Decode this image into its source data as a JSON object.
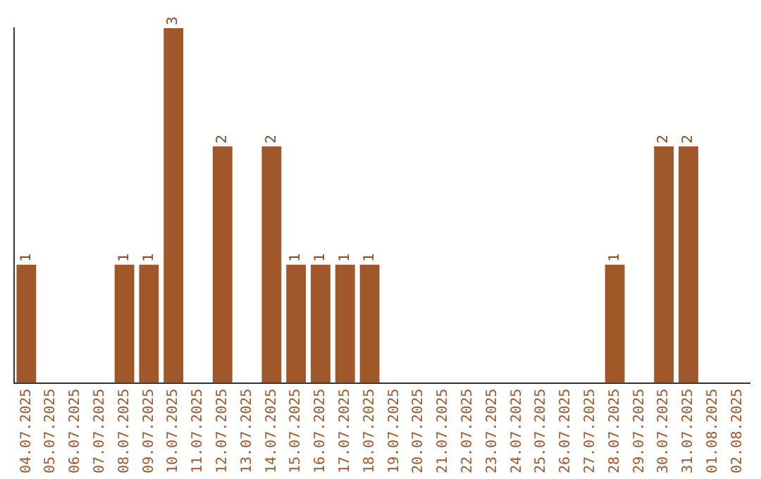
{
  "chart_data": {
    "type": "bar",
    "categories": [
      "04.07.2025",
      "05.07.2025",
      "06.07.2025",
      "07.07.2025",
      "08.07.2025",
      "09.07.2025",
      "10.07.2025",
      "11.07.2025",
      "12.07.2025",
      "13.07.2025",
      "14.07.2025",
      "15.07.2025",
      "16.07.2025",
      "17.07.2025",
      "18.07.2025",
      "19.07.2025",
      "20.07.2025",
      "21.07.2025",
      "22.07.2025",
      "23.07.2025",
      "24.07.2025",
      "25.07.2025",
      "26.07.2025",
      "27.07.2025",
      "28.07.2025",
      "29.07.2025",
      "30.07.2025",
      "31.07.2025",
      "01.08.2025",
      "02.08.2025"
    ],
    "values": [
      1,
      0,
      0,
      0,
      1,
      1,
      3,
      0,
      2,
      0,
      2,
      1,
      1,
      1,
      1,
      0,
      0,
      0,
      0,
      0,
      0,
      0,
      0,
      0,
      1,
      0,
      2,
      2,
      0,
      0
    ],
    "value_labels": [
      "1",
      null,
      null,
      null,
      "1",
      "1",
      "3",
      null,
      "2",
      null,
      "2",
      "1",
      "1",
      "1",
      "1",
      null,
      null,
      null,
      null,
      null,
      null,
      null,
      null,
      null,
      "1",
      null,
      "2",
      "2",
      null,
      null
    ],
    "color": "#a0572a",
    "ylim": [
      0,
      3
    ],
    "tick_labels": "x",
    "grid": false,
    "legend": false
  }
}
